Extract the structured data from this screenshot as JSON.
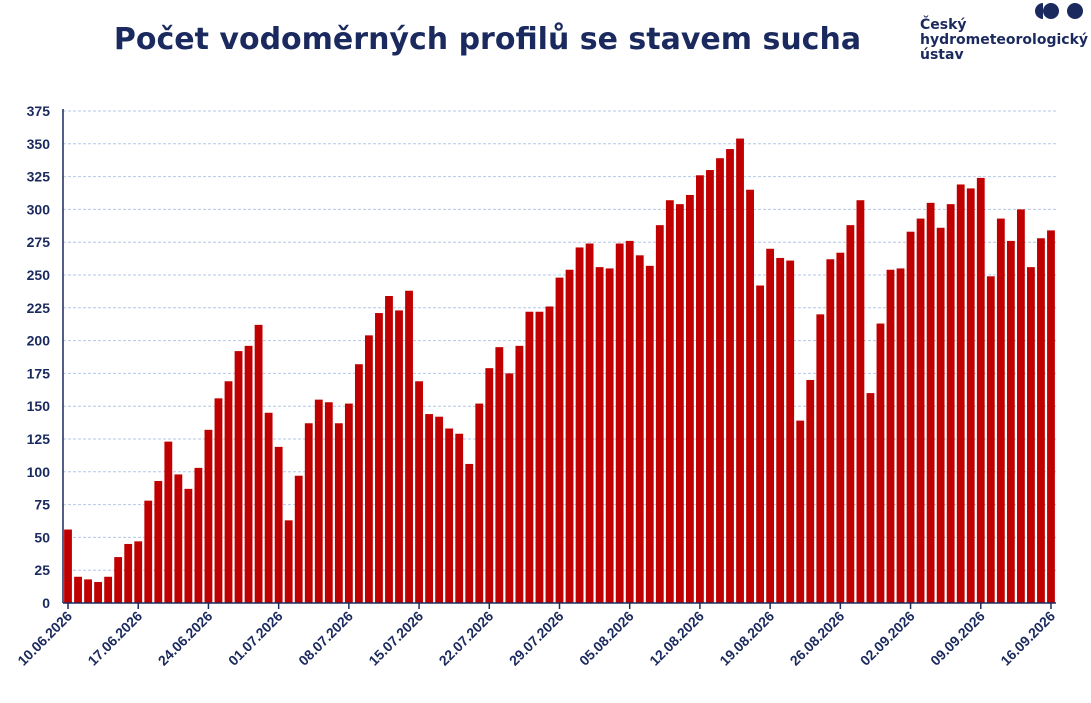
{
  "title": "Počet vodoměrných profilů se stavem sucha",
  "logo": {
    "lines": [
      "Český",
      "hydrometeorologický",
      "ústav"
    ],
    "mark": "chmu-logo-mark"
  },
  "colors": {
    "bar": "#c00000",
    "title": "#1b2a5e",
    "axis_text": "#1b2a5e",
    "grid": "#b4c7e7"
  },
  "chart_data": {
    "type": "bar",
    "title": "Počet vodoměrných profilů se stavem sucha",
    "xlabel": "",
    "ylabel": "",
    "ylim": [
      0,
      375
    ],
    "yticks": [
      0,
      25,
      50,
      75,
      100,
      125,
      150,
      175,
      200,
      225,
      250,
      275,
      300,
      325,
      350,
      375
    ],
    "grid": true,
    "legend": "none",
    "x_tick_labels": [
      "10.06.2026",
      "17.06.2026",
      "24.06.2026",
      "01.07.2026",
      "08.07.2026",
      "15.07.2026",
      "22.07.2026",
      "29.07.2026",
      "05.08.2026",
      "12.08.2026",
      "19.08.2026",
      "26.08.2026",
      "02.09.2026",
      "09.09.2026",
      "16.09.2026"
    ],
    "x_start": "10.06.2026",
    "x_end": "16.09.2026",
    "values": [
      56,
      20,
      18,
      16,
      20,
      35,
      45,
      47,
      78,
      93,
      123,
      98,
      87,
      103,
      132,
      156,
      169,
      192,
      196,
      212,
      145,
      119,
      63,
      97,
      137,
      155,
      153,
      137,
      152,
      182,
      204,
      221,
      234,
      223,
      238,
      169,
      144,
      142,
      133,
      129,
      106,
      152,
      179,
      195,
      175,
      196,
      222,
      222,
      226,
      248,
      254,
      271,
      274,
      256,
      255,
      274,
      276,
      265,
      257,
      288,
      307,
      304,
      311,
      326,
      330,
      339,
      346,
      354,
      315,
      242,
      270,
      263,
      261,
      139,
      170,
      220,
      262,
      267,
      288,
      307,
      160,
      213,
      254,
      255,
      283,
      293,
      305,
      286,
      304,
      319,
      316,
      324,
      249,
      293,
      276,
      300,
      256,
      278,
      284
    ]
  }
}
